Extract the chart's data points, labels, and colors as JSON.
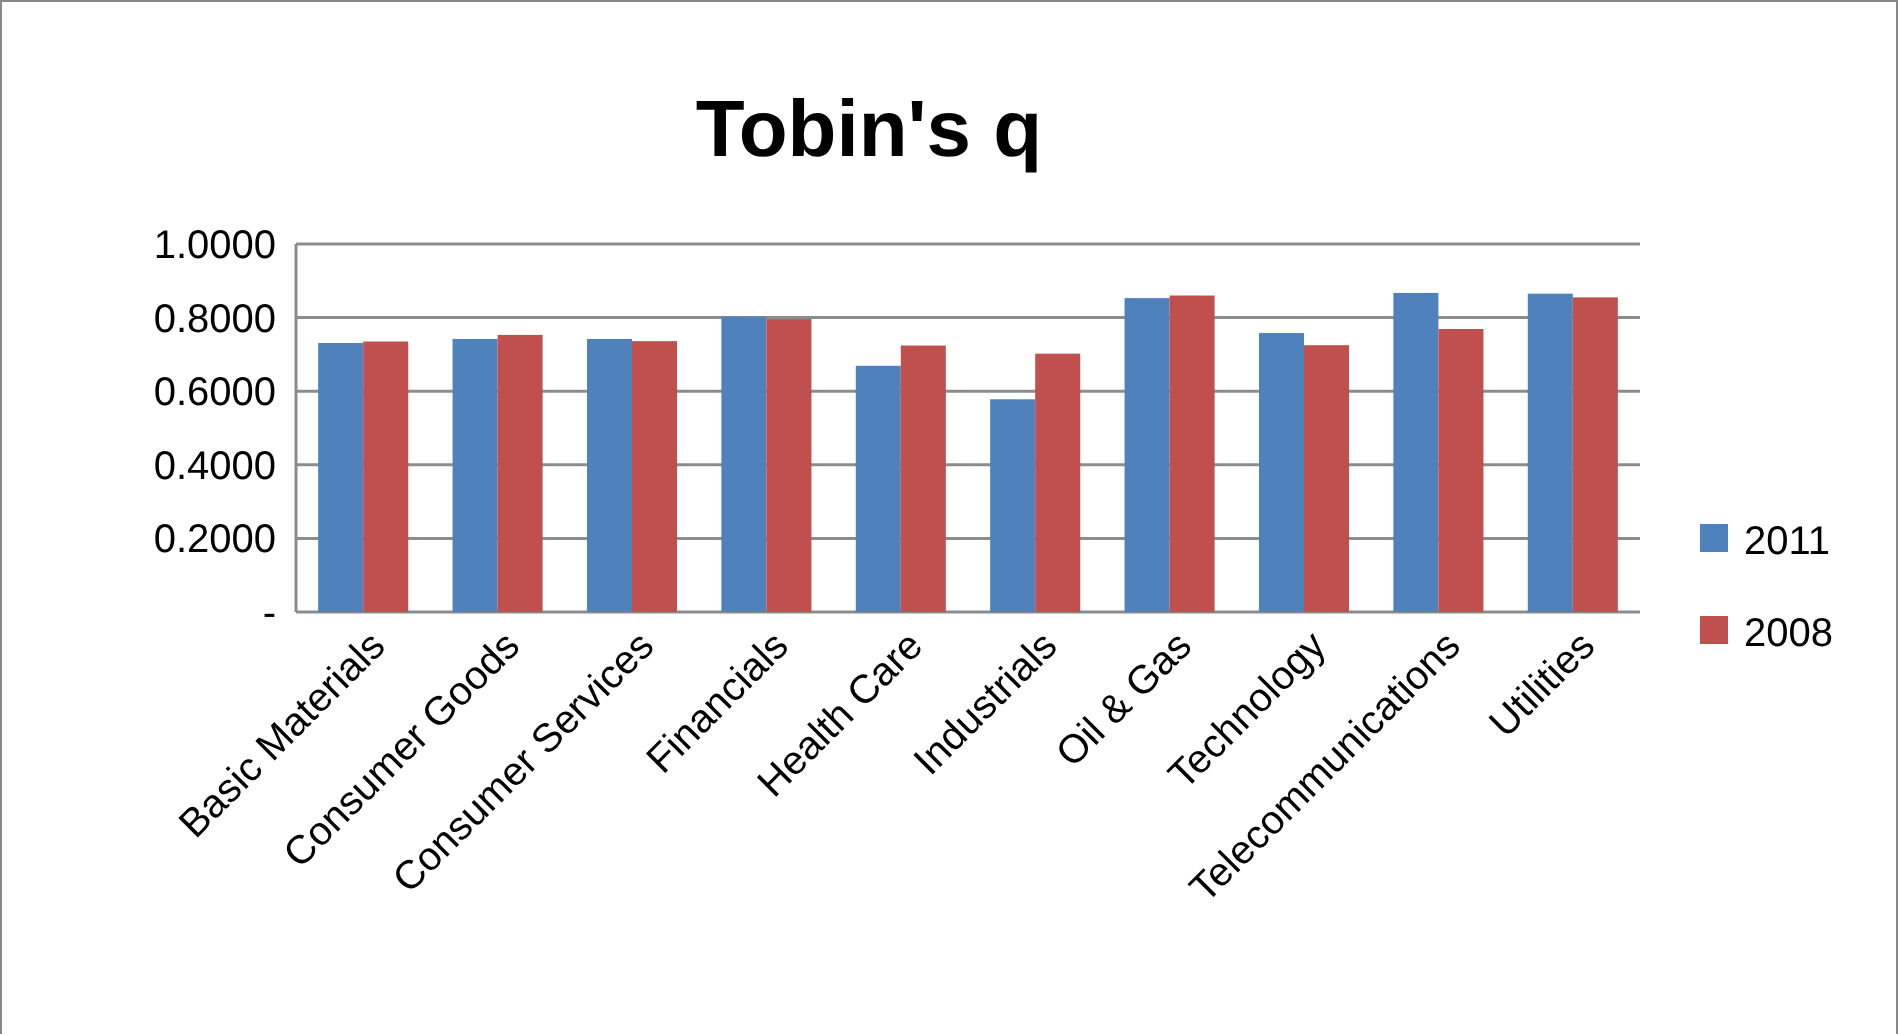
{
  "chart_data": {
    "type": "bar",
    "title": "Tobin's q",
    "categories": [
      "Basic Materials",
      "Consumer Goods",
      "Consumer Services",
      "Financials",
      "Health Care",
      "Industrials",
      "Oil & Gas",
      "Technology",
      "Telecommunications",
      "Utilities"
    ],
    "series": [
      {
        "name": "2011",
        "color": "#4f81bd",
        "values": [
          0.731,
          0.742,
          0.742,
          0.802,
          0.669,
          0.578,
          0.853,
          0.758,
          0.867,
          0.865
        ]
      },
      {
        "name": "2008",
        "color": "#c0504d",
        "values": [
          0.735,
          0.753,
          0.736,
          0.796,
          0.724,
          0.702,
          0.86,
          0.725,
          0.769,
          0.855
        ]
      }
    ],
    "ylim": [
      0,
      1
    ],
    "yticks": [
      {
        "value": 0,
        "label": "-"
      },
      {
        "value": 0.2,
        "label": "0.2000"
      },
      {
        "value": 0.4,
        "label": "0.4000"
      },
      {
        "value": 0.6,
        "label": "0.6000"
      },
      {
        "value": 0.8,
        "label": "0.8000"
      },
      {
        "value": 1,
        "label": "1.0000"
      }
    ],
    "grid": "y",
    "legend": "right"
  }
}
